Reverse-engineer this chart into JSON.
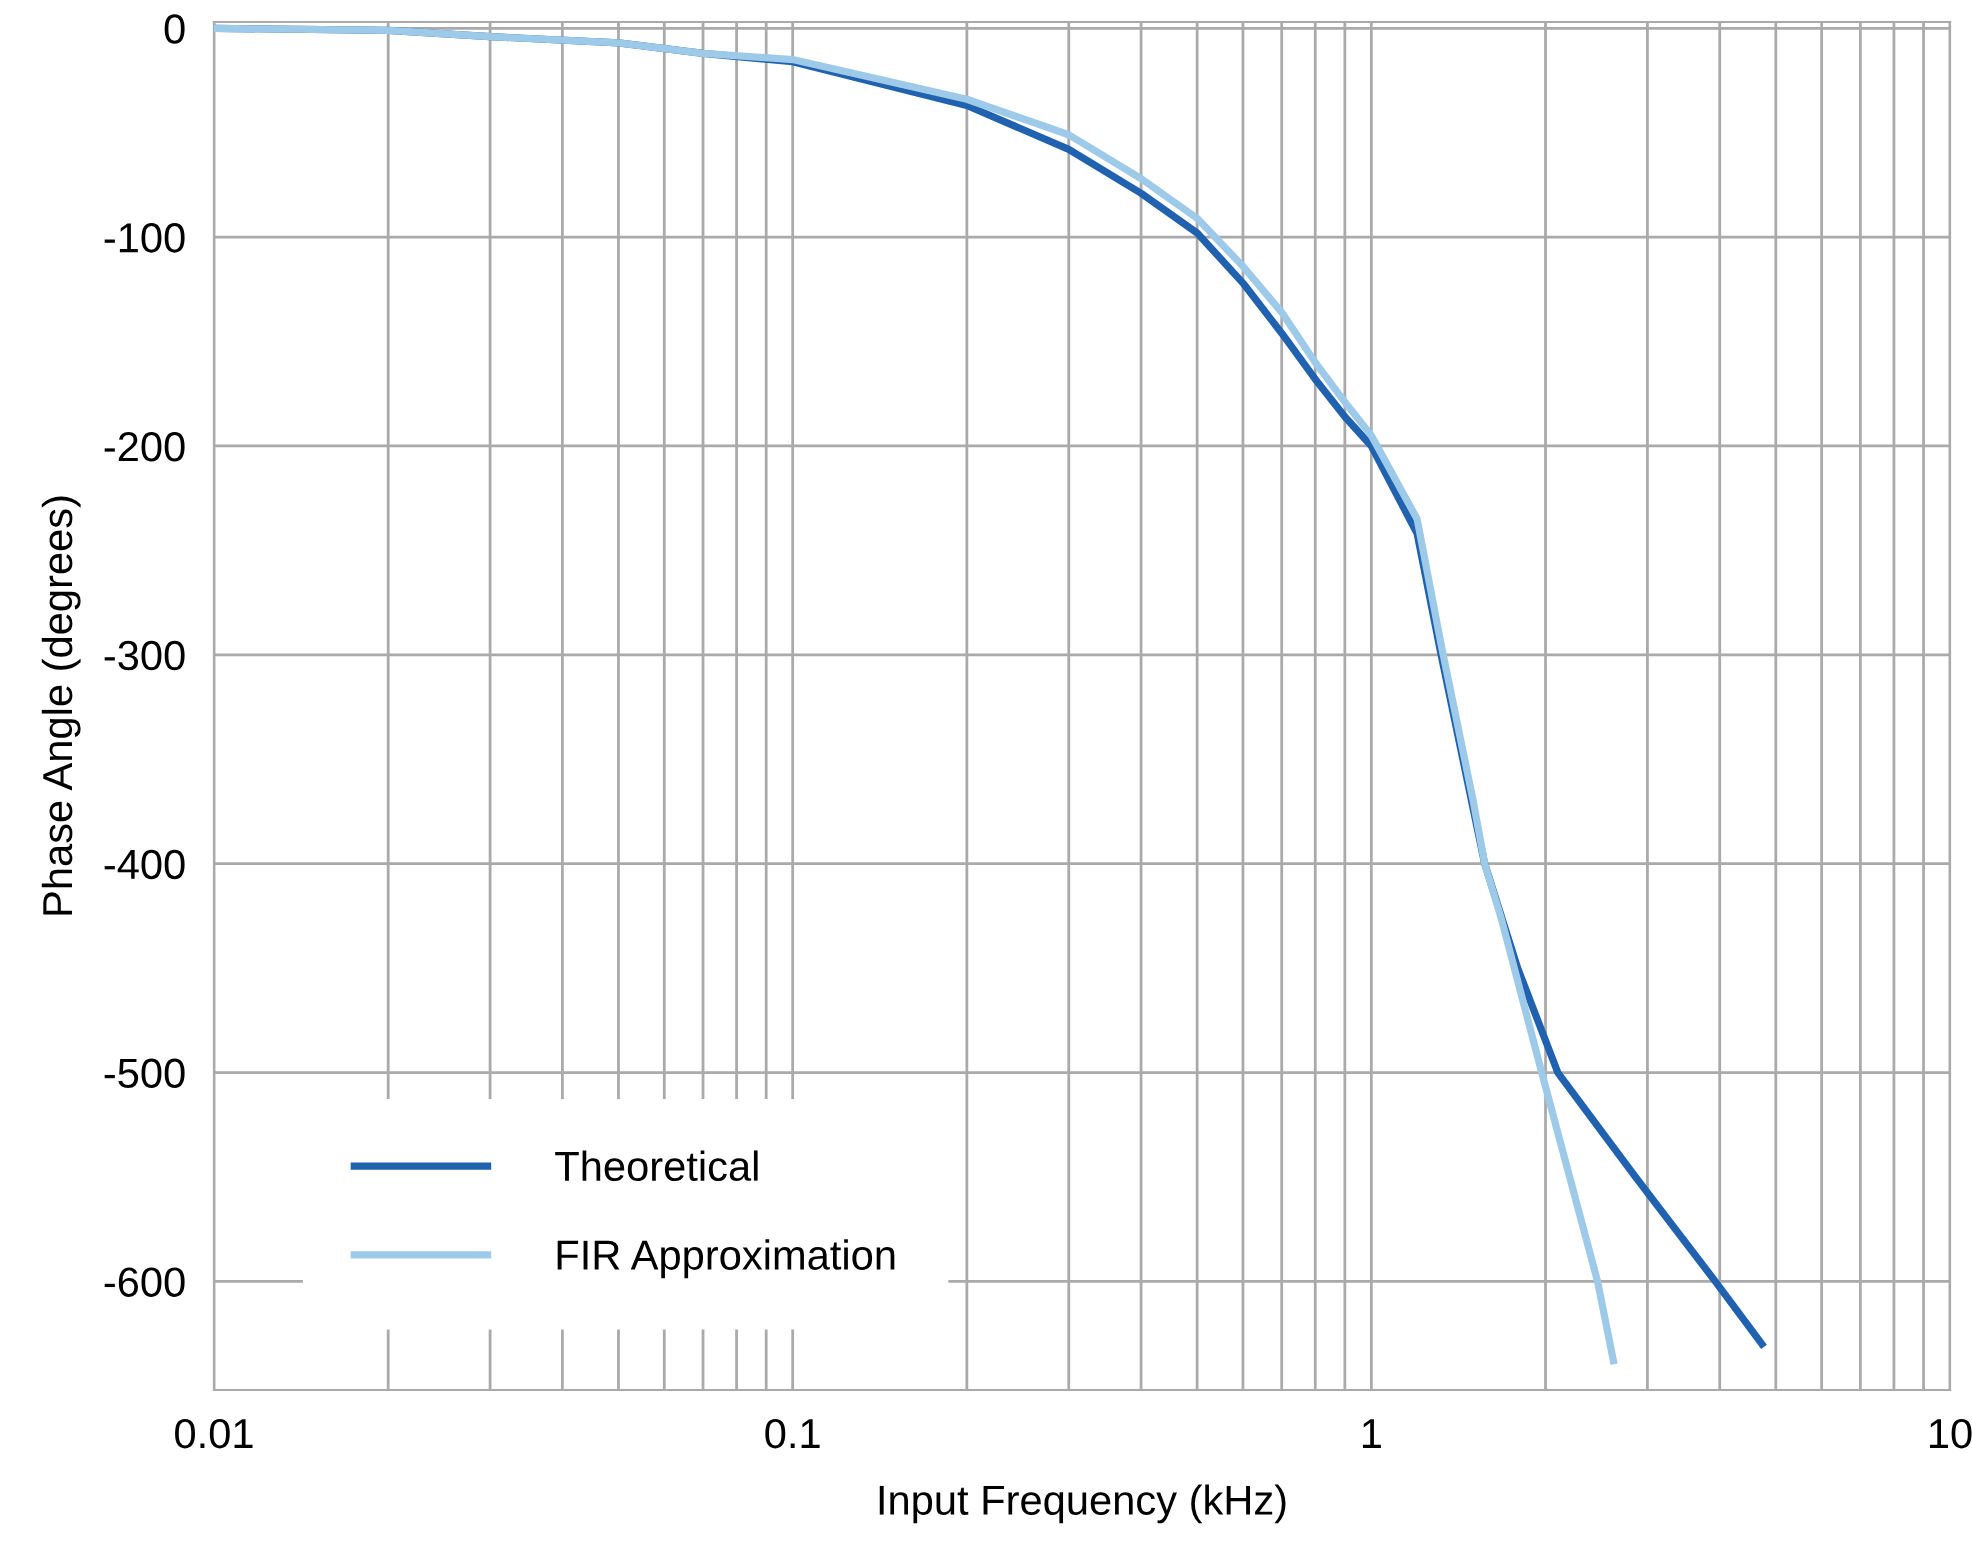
{
  "chart_data": {
    "type": "line",
    "xlabel": "Input Frequency (kHz)",
    "ylabel": "Phase Angle (degrees)",
    "log": "x",
    "xlim": [
      0.01,
      10
    ],
    "xticks": [
      0.01,
      0.1,
      1,
      10
    ],
    "ylim": [
      -652,
      3
    ],
    "yticks": [
      0,
      -100,
      -200,
      -300,
      -400,
      -500,
      -600
    ],
    "grid": true,
    "legend": "bottom left",
    "line_style": "solid",
    "marker": "none",
    "series": [
      {
        "name": "Theoretical",
        "color": "#2062b0",
        "x": [
          0.01,
          0.02,
          0.03,
          0.05,
          0.07,
          0.1,
          0.2,
          0.3,
          0.4,
          0.5,
          0.6,
          0.7,
          0.8,
          0.9,
          1.0,
          1.2,
          1.32,
          1.49,
          1.57,
          1.79,
          2.1,
          2.86,
          3.93,
          4.73
        ],
        "values": [
          0,
          -1,
          -4,
          -7,
          -12,
          -16,
          -37,
          -58,
          -79,
          -98,
          -122,
          -146,
          -168,
          -186,
          -200,
          -242,
          -300,
          -370,
          -400,
          -450,
          -500,
          -550,
          -600,
          -630
        ]
      },
      {
        "name": "FIR Approximation",
        "color": "#9ecae9",
        "x": [
          0.01,
          0.02,
          0.03,
          0.05,
          0.07,
          0.1,
          0.2,
          0.3,
          0.4,
          0.5,
          0.6,
          0.7,
          0.8,
          0.9,
          1.0,
          1.2,
          1.32,
          1.5,
          1.57,
          1.68,
          1.97,
          2.46,
          2.62
        ],
        "values": [
          0,
          -1,
          -4,
          -7,
          -12,
          -15,
          -34,
          -51,
          -72,
          -91,
          -114,
          -136,
          -160,
          -179,
          -195,
          -235,
          -295,
          -370,
          -400,
          -427,
          -500,
          -600,
          -638
        ]
      }
    ]
  }
}
